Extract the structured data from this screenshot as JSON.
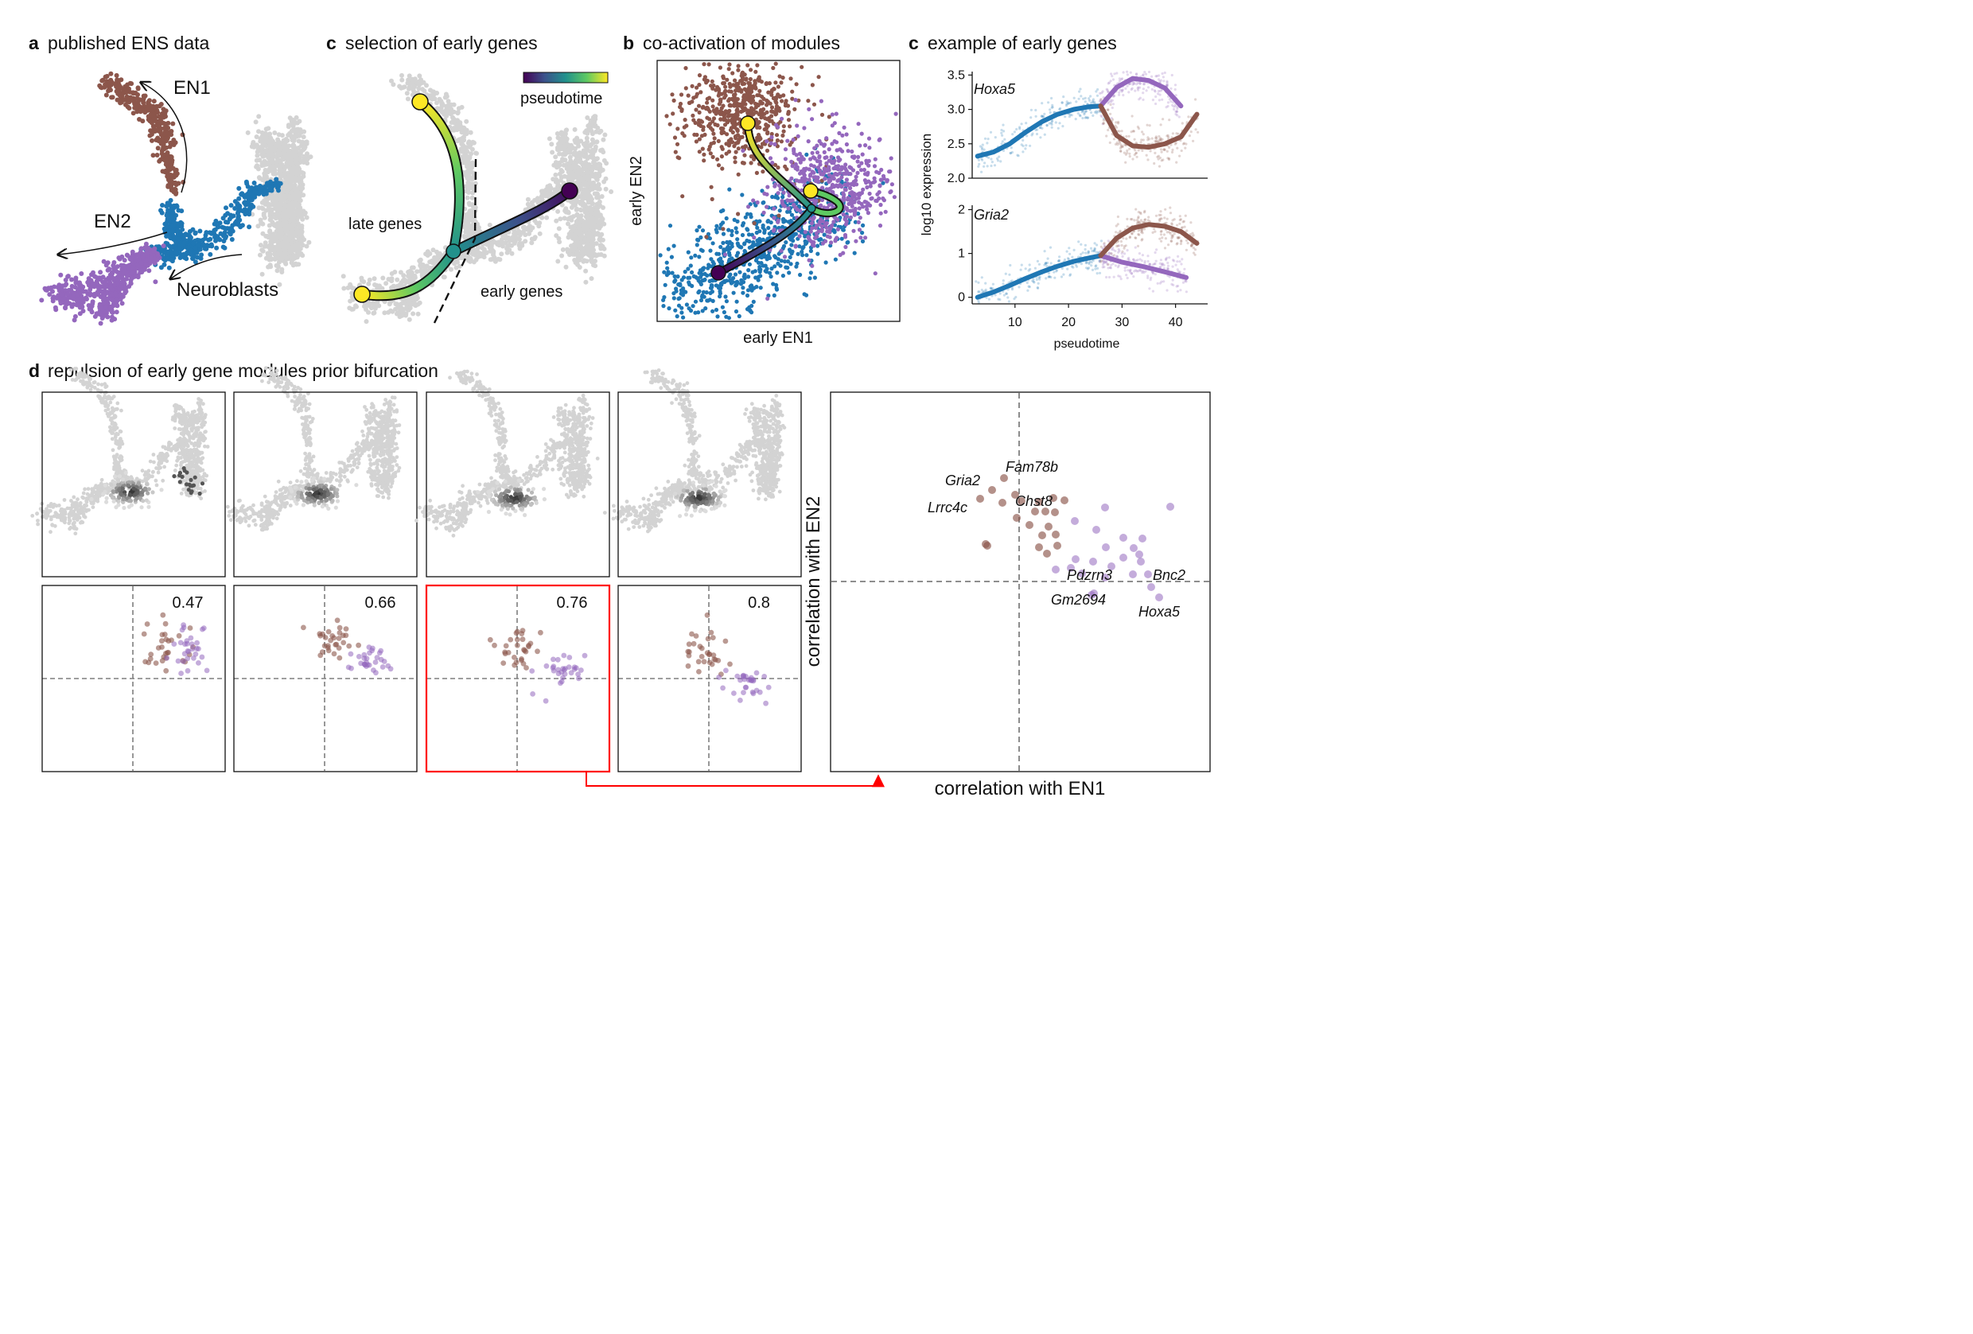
{
  "panels": {
    "a": {
      "label": "a",
      "title": "published ENS data",
      "branch_en1": "EN1",
      "branch_en2": "EN2",
      "root": "Neuroblasts"
    },
    "c1": {
      "label": "c",
      "title": "selection of early genes",
      "late": "late genes",
      "early": "early genes",
      "colorbar_label": "pseudotime"
    },
    "b": {
      "label": "b",
      "title": "co-activation of modules",
      "xlabel": "early EN1",
      "ylabel": "early EN2"
    },
    "c2": {
      "label": "c",
      "title": "example of early genes",
      "gene_top": "Hoxa5",
      "gene_bottom": "Gria2",
      "ylabel": "log10 expression",
      "xlabel": "pseudotime"
    },
    "d": {
      "label": "d",
      "title": "repulsion of early gene modules prior bifurcation",
      "window_values": [
        "0.47",
        "0.66",
        "0.76",
        "0.8"
      ],
      "xlabel": "correlation with EN1",
      "ylabel": "correlation with EN2"
    }
  },
  "colors": {
    "en1": "#8c564b",
    "en2": "#9467bd",
    "root": "#1f77b4",
    "background_cells": "#d3d3d3",
    "highlight": "#ff0000",
    "dashed": "#7f7f7f"
  },
  "chart_data": [
    {
      "type": "line",
      "panel": "c2-top",
      "ylabel": "log10 expression",
      "gene": "Hoxa5",
      "xlim": [
        2,
        46
      ],
      "ylim": [
        2.0,
        3.55
      ],
      "xticks": [
        10,
        20,
        30,
        40
      ],
      "yticks": [
        "2.0",
        "2.5",
        "3.0",
        "3.5"
      ],
      "series": [
        {
          "color": "#1f77b4",
          "x": [
            3,
            6,
            9,
            12,
            15,
            18,
            21,
            24,
            26
          ],
          "y": [
            2.32,
            2.38,
            2.5,
            2.67,
            2.82,
            2.93,
            3.0,
            3.04,
            3.05
          ]
        },
        {
          "color": "#9467bd",
          "x": [
            26,
            29,
            32,
            35,
            38,
            41
          ],
          "y": [
            3.05,
            3.32,
            3.45,
            3.42,
            3.31,
            3.05
          ]
        },
        {
          "color": "#8c564b",
          "x": [
            26,
            29,
            32,
            35,
            38,
            41,
            44
          ],
          "y": [
            3.05,
            2.62,
            2.47,
            2.45,
            2.5,
            2.6,
            2.93
          ]
        }
      ]
    },
    {
      "type": "line",
      "panel": "c2-bottom",
      "xlabel": "pseudotime",
      "gene": "Gria2",
      "xlim": [
        2,
        46
      ],
      "ylim": [
        -0.15,
        2.1
      ],
      "xticks": [
        10,
        20,
        30,
        40
      ],
      "yticks": [
        "0",
        "1",
        "2"
      ],
      "series": [
        {
          "color": "#1f77b4",
          "x": [
            3,
            6,
            9,
            12,
            15,
            18,
            21,
            24,
            26
          ],
          "y": [
            0.0,
            0.12,
            0.27,
            0.43,
            0.58,
            0.71,
            0.82,
            0.9,
            0.95
          ]
        },
        {
          "color": "#9467bd",
          "x": [
            26,
            30,
            34,
            38,
            42
          ],
          "y": [
            0.95,
            0.8,
            0.7,
            0.58,
            0.45
          ]
        },
        {
          "color": "#8c564b",
          "x": [
            26,
            29,
            32,
            35,
            38,
            41,
            44
          ],
          "y": [
            0.95,
            1.35,
            1.58,
            1.66,
            1.62,
            1.5,
            1.23
          ]
        }
      ]
    },
    {
      "type": "scatter",
      "panel": "d-right",
      "xlabel": "correlation with EN1",
      "ylabel": "correlation with EN2",
      "labels": [
        "Fam78b",
        "Gria2",
        "Chst8",
        "Lrrc4c",
        "Pdzrn3",
        "Bnc2",
        "Gm2694",
        "Hoxa5"
      ]
    }
  ]
}
